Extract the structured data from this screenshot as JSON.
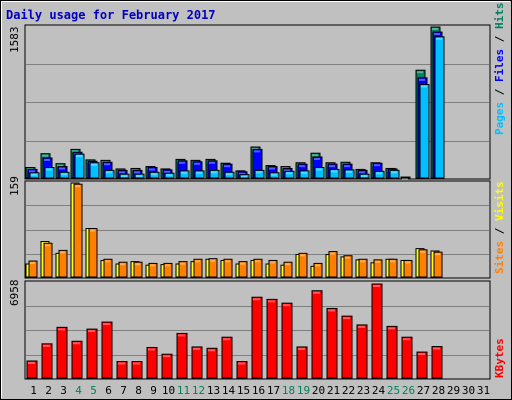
{
  "title": "Daily usage for February 2017",
  "colors": {
    "background": "#c0c0c0",
    "title": "#0000c0",
    "hits": "#00805c",
    "files": "#0000ff",
    "pages": "#00c0ff",
    "visits": "#ffff00",
    "sites": "#ff8000",
    "kbytes": "#ff0000",
    "weekend_label": "#00805c",
    "weekday_label": "#000000",
    "grid": "#808080"
  },
  "chart_data": [
    {
      "type": "bar",
      "panel": "hits-files-pages",
      "ymax_label": "1583",
      "ylim": [
        0,
        1583
      ],
      "legend": [
        "Pages",
        "Files",
        "Hits"
      ],
      "days": [
        1,
        2,
        3,
        4,
        5,
        6,
        7,
        8,
        9,
        10,
        11,
        12,
        13,
        14,
        15,
        16,
        17,
        18,
        19,
        20,
        21,
        22,
        23,
        24,
        25,
        26,
        27,
        28
      ],
      "series": [
        {
          "name": "Hits",
          "values": [
            110,
            255,
            150,
            300,
            190,
            185,
            95,
            100,
            120,
            95,
            195,
            185,
            195,
            155,
            75,
            325,
            130,
            120,
            160,
            260,
            160,
            165,
            90,
            160,
            100,
            10,
            1130,
            1583
          ]
        },
        {
          "name": "Files",
          "values": [
            90,
            210,
            120,
            270,
            175,
            165,
            80,
            80,
            110,
            85,
            180,
            170,
            180,
            145,
            65,
            300,
            120,
            100,
            145,
            220,
            145,
            145,
            80,
            155,
            95,
            0,
            1050,
            1530
          ]
        },
        {
          "name": "Pages",
          "values": [
            55,
            110,
            60,
            250,
            160,
            80,
            40,
            40,
            60,
            50,
            75,
            75,
            80,
            60,
            35,
            80,
            55,
            70,
            75,
            110,
            90,
            85,
            40,
            70,
            80,
            0,
            980,
            1480
          ]
        }
      ]
    },
    {
      "type": "bar",
      "panel": "visits-sites",
      "ymax_label": "159",
      "ylim": [
        0,
        159
      ],
      "days": [
        1,
        2,
        3,
        4,
        5,
        6,
        7,
        8,
        9,
        10,
        11,
        12,
        13,
        14,
        15,
        16,
        17,
        18,
        19,
        20,
        21,
        22,
        23,
        24,
        25,
        26,
        27,
        28
      ],
      "series": [
        {
          "name": "Visits",
          "values": [
            22,
            60,
            40,
            159,
            82,
            28,
            22,
            26,
            20,
            21,
            22,
            26,
            30,
            28,
            22,
            28,
            22,
            20,
            38,
            18,
            38,
            34,
            29,
            24,
            30,
            28,
            48,
            44
          ]
        },
        {
          "name": "Sites",
          "values": [
            27,
            57,
            45,
            157,
            82,
            30,
            25,
            25,
            23,
            23,
            26,
            30,
            31,
            30,
            26,
            30,
            28,
            25,
            40,
            23,
            43,
            36,
            30,
            29,
            30,
            28,
            46,
            42
          ]
        }
      ]
    },
    {
      "type": "bar",
      "panel": "kbytes",
      "ymax_label": "6958",
      "ylim": [
        0,
        6958
      ],
      "days": [
        1,
        2,
        3,
        4,
        5,
        6,
        7,
        8,
        9,
        10,
        11,
        12,
        13,
        14,
        15,
        16,
        17,
        18,
        19,
        20,
        21,
        22,
        23,
        24,
        25,
        26,
        27,
        28
      ],
      "series": [
        {
          "name": "KBytes",
          "values": [
            1260,
            2530,
            3750,
            2720,
            3620,
            4140,
            1220,
            1220,
            2260,
            1760,
            3300,
            2300,
            2200,
            3020,
            1220,
            5980,
            5820,
            5540,
            2300,
            6460,
            5150,
            4580,
            3930,
            6958,
            3820,
            3020,
            1920,
            2330
          ]
        }
      ]
    }
  ],
  "legend_labels": {
    "pages": "Pages",
    "files": "Files",
    "hits": "Hits",
    "sites": "Sites",
    "visits": "Visits",
    "kbytes": "KBytes",
    "sep": " / "
  },
  "x_labels": [
    "1",
    "2",
    "3",
    "4",
    "5",
    "6",
    "7",
    "8",
    "9",
    "10",
    "11",
    "12",
    "13",
    "14",
    "15",
    "16",
    "17",
    "18",
    "19",
    "20",
    "21",
    "22",
    "23",
    "24",
    "25",
    "26",
    "27",
    "28",
    "29",
    "30",
    "31"
  ],
  "weekend_days": [
    4,
    5,
    11,
    12,
    18,
    19,
    25,
    26
  ]
}
